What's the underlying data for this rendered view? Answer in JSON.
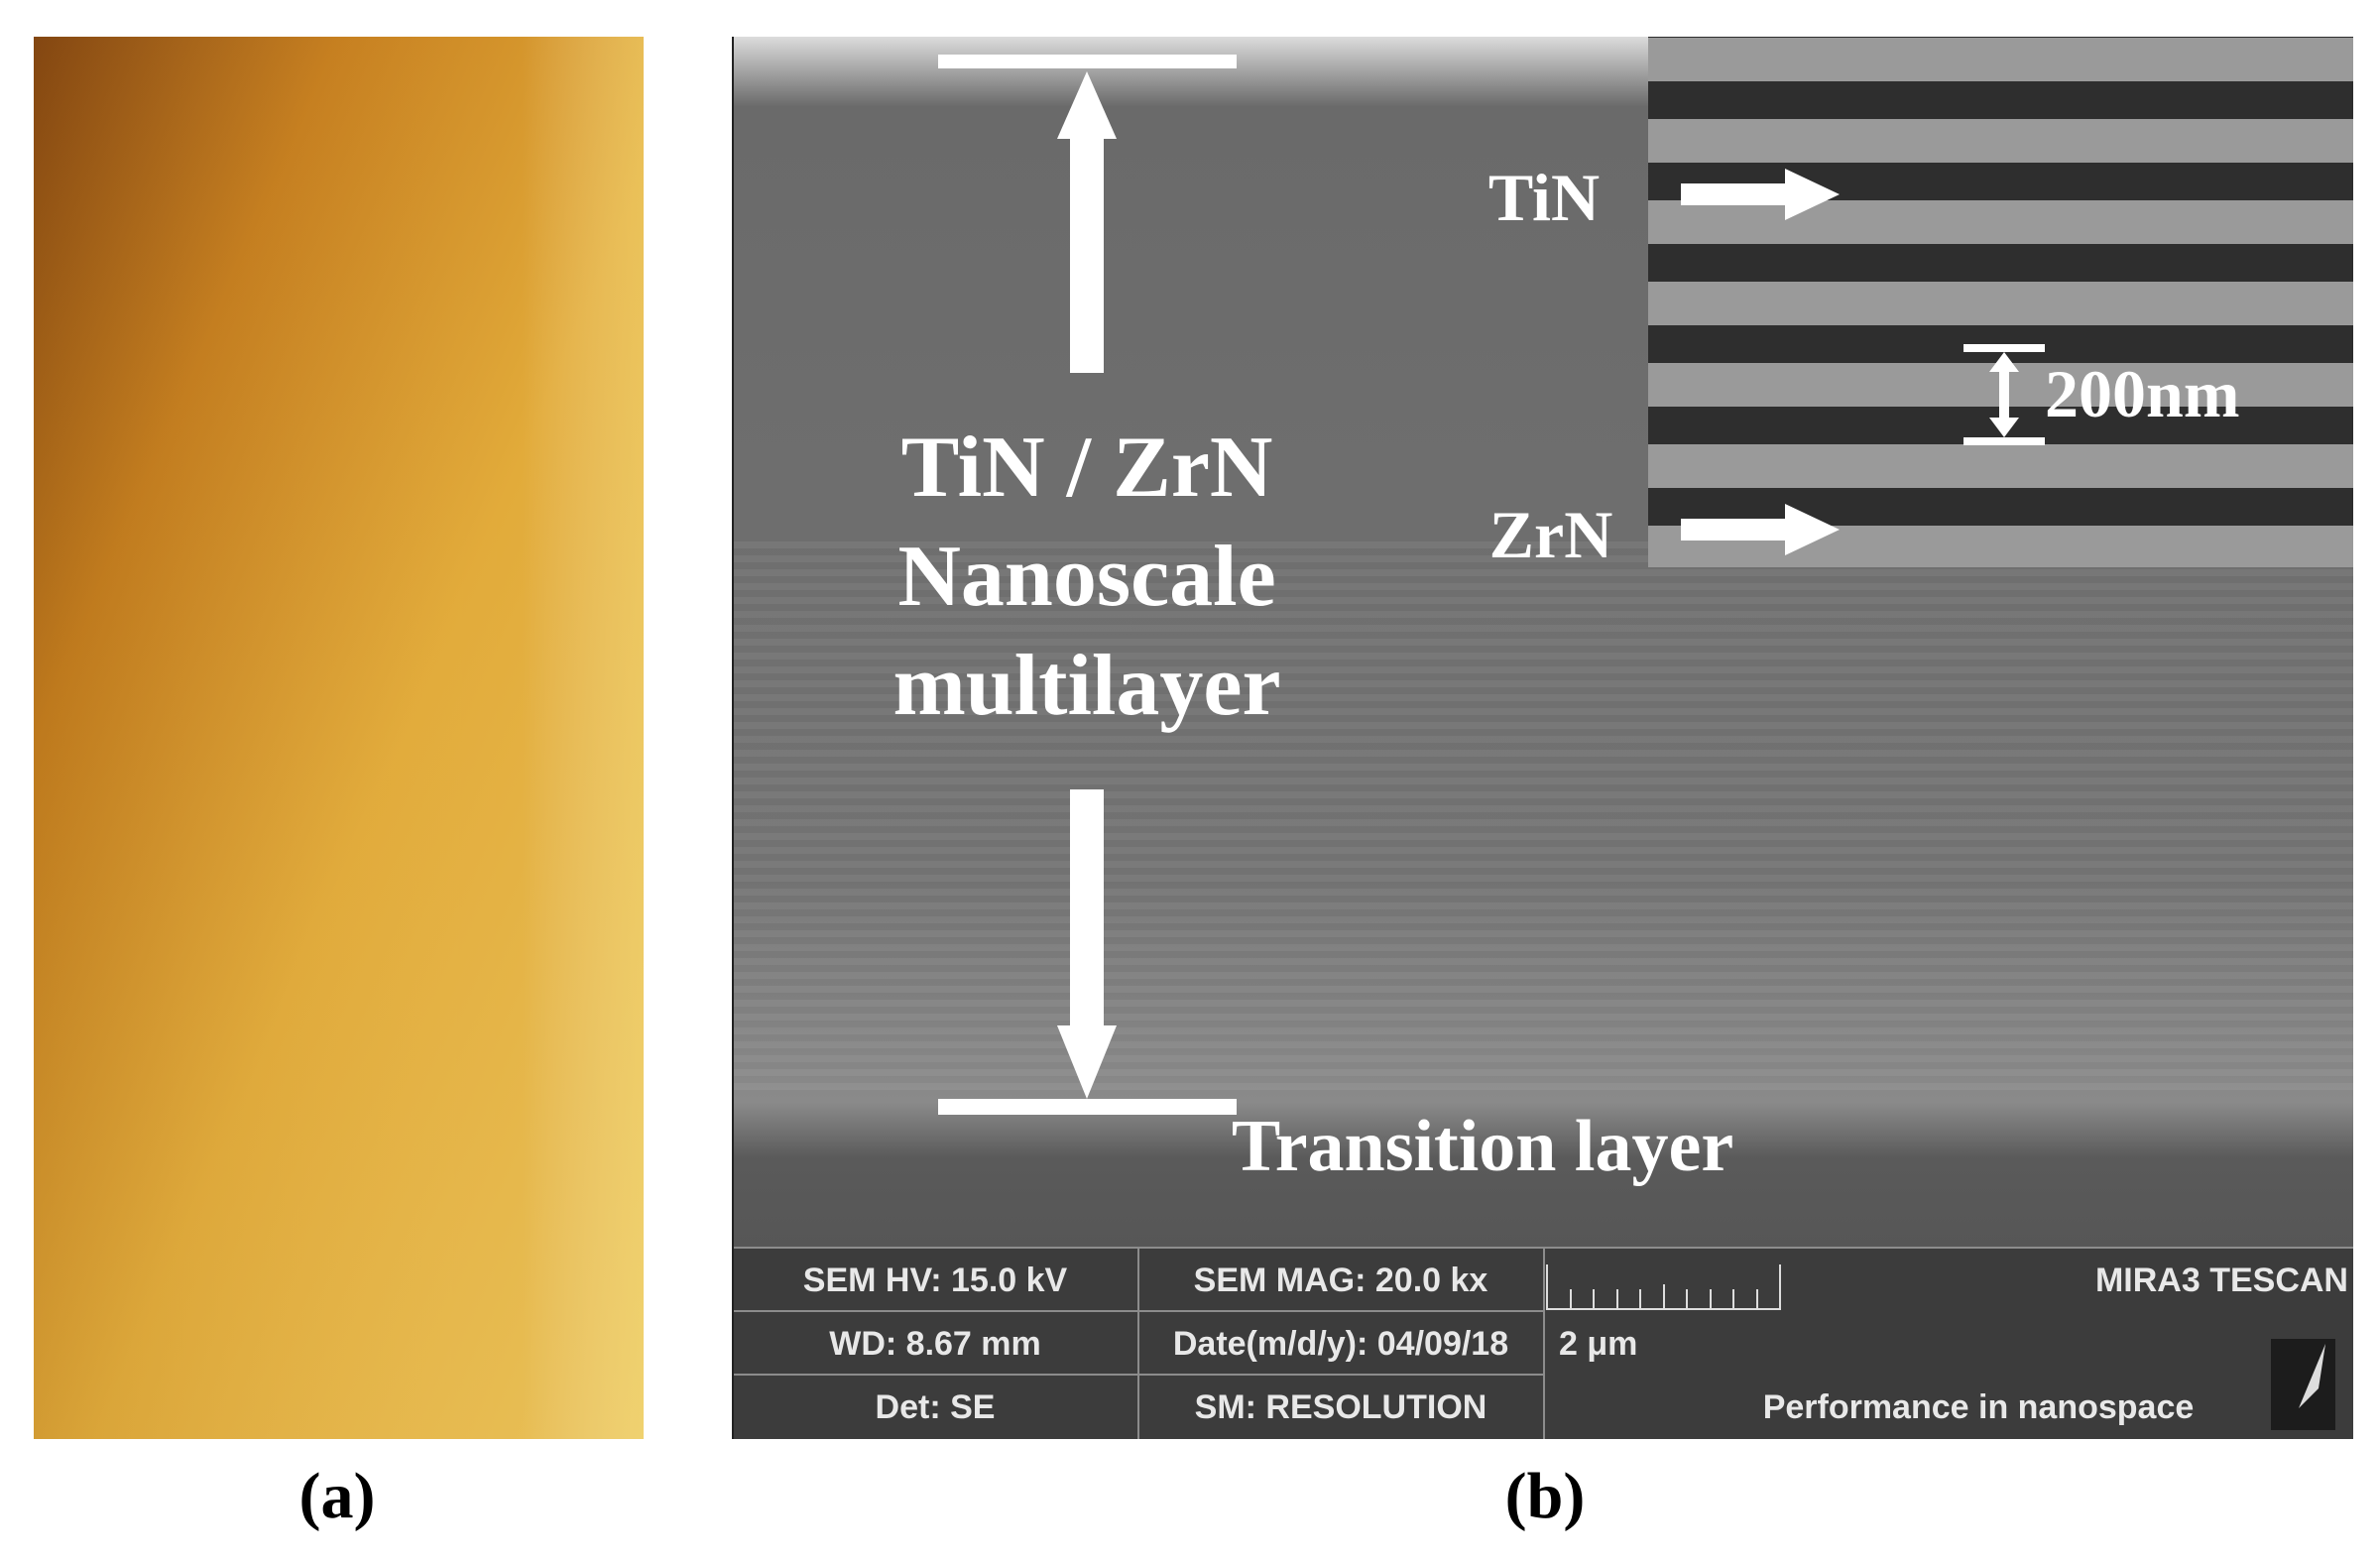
{
  "panels": [
    {
      "label": "(a)"
    },
    {
      "label": "(b)",
      "annotations": {
        "layer_title": [
          "TiN / ZrN",
          "Nanoscale",
          "multilayer"
        ],
        "transition": "Transition layer",
        "inset": {
          "top_layer": "TiN",
          "bottom_layer": "ZrN",
          "scale": "200nm"
        }
      },
      "info_bar": {
        "rows": [
          [
            "SEM HV: 15.0 kV",
            "SEM MAG: 20.0 kx",
            "MIRA3 TESCAN"
          ],
          [
            "WD: 8.67 mm",
            "Date(m/d/y): 04/09/18",
            "2 μm"
          ],
          [
            "Det: SE",
            "SM: RESOLUTION",
            "Performance in nanospace"
          ]
        ]
      }
    }
  ]
}
